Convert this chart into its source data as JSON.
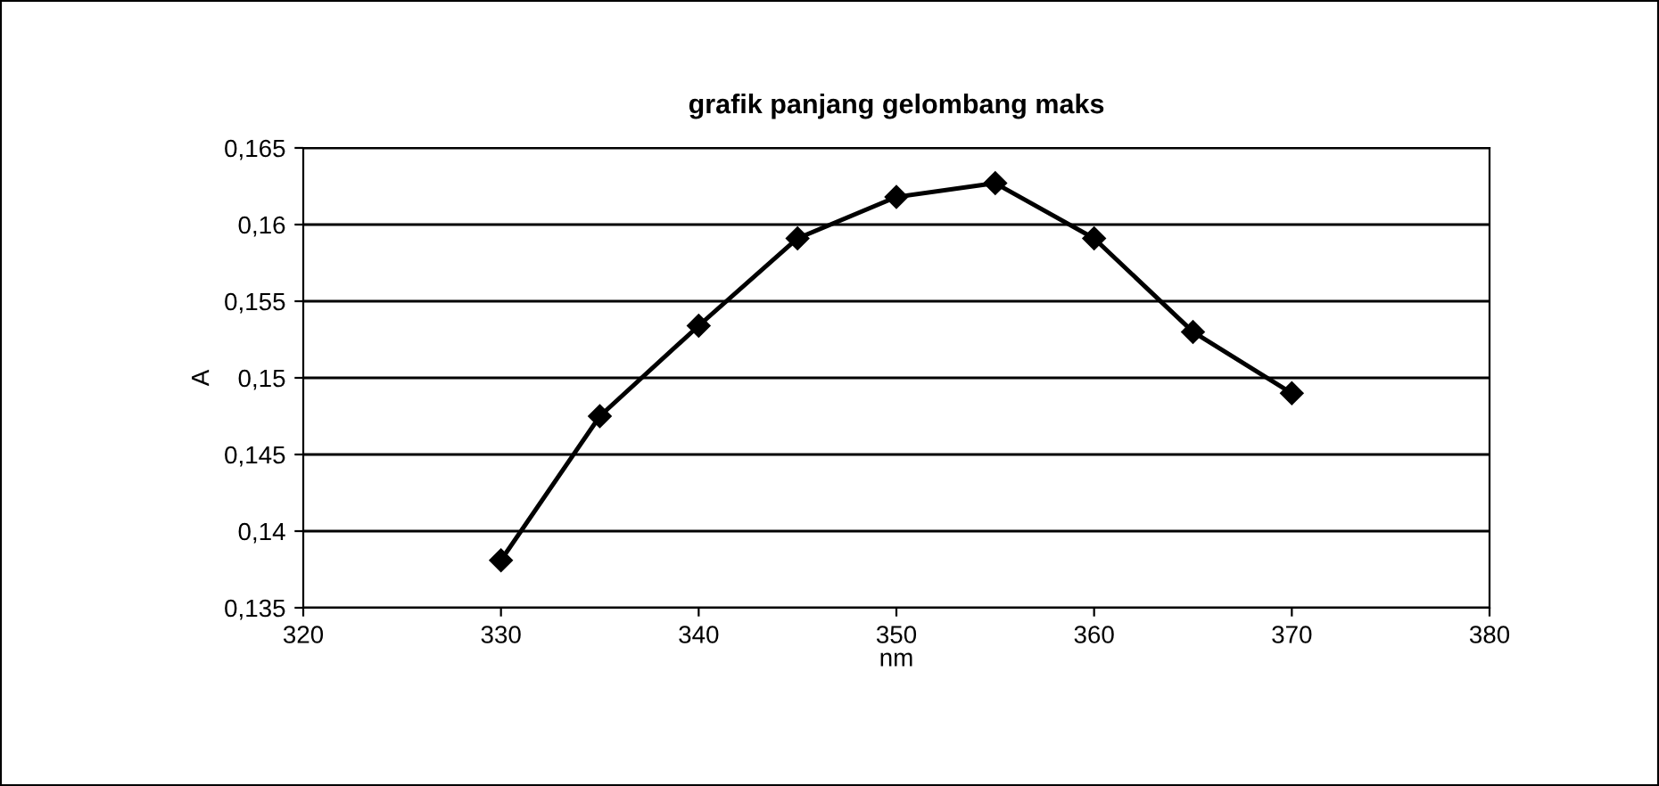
{
  "chart_data": {
    "type": "line",
    "title": "grafik panjang gelombang maks",
    "xlabel": "nm",
    "ylabel": "A",
    "x": [
      330,
      335,
      340,
      345,
      350,
      355,
      360,
      365,
      370
    ],
    "series": [
      {
        "color": "#000000",
        "values": [
          0.1381,
          0.1475,
          0.1534,
          0.1591,
          0.1618,
          0.1627,
          0.1591,
          0.153,
          0.149
        ]
      }
    ],
    "xlim": [
      320,
      380
    ],
    "xticks": [
      320,
      330,
      340,
      350,
      360,
      370,
      380
    ],
    "ylim": [
      0.135,
      0.165
    ],
    "yticks": [
      {
        "value": 0.135,
        "label": "0,135"
      },
      {
        "value": 0.14,
        "label": "0,14"
      },
      {
        "value": 0.145,
        "label": "0,145"
      },
      {
        "value": 0.15,
        "label": "0,15"
      },
      {
        "value": 0.155,
        "label": "0,155"
      },
      {
        "value": 0.16,
        "label": "0,16"
      },
      {
        "value": 0.165,
        "label": "0,165"
      }
    ],
    "grid": "y",
    "marker": "diamond",
    "line_style": "solid",
    "legend": false
  }
}
